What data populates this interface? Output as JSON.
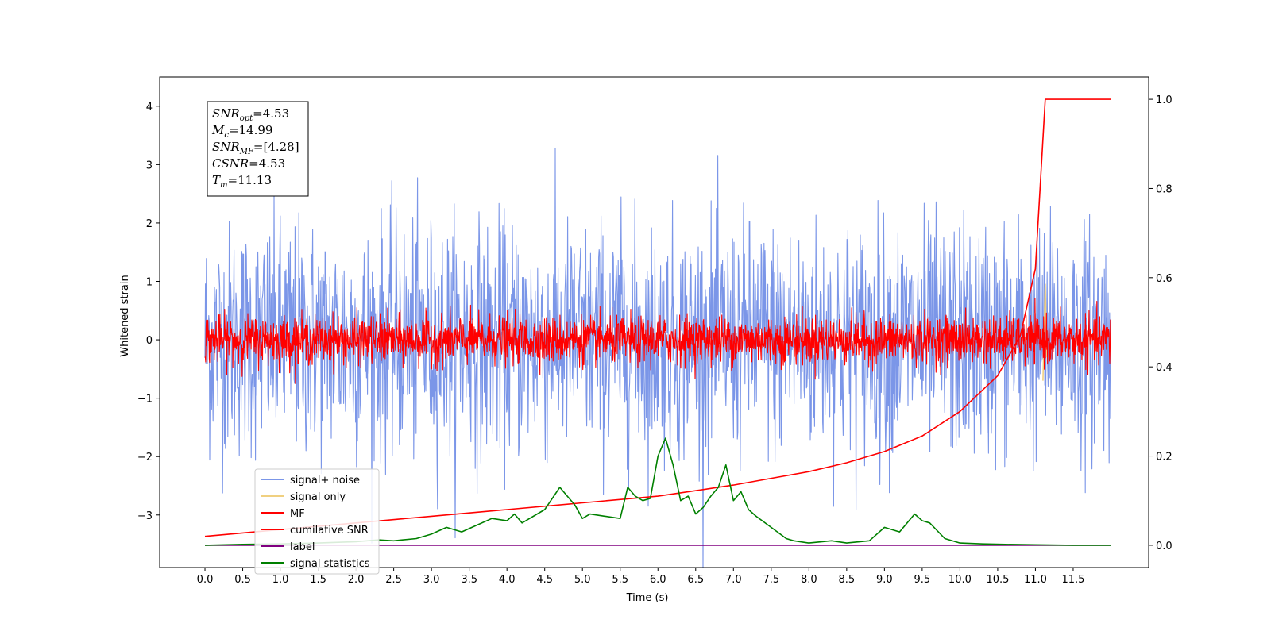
{
  "chart_data": {
    "type": "line",
    "xlabel": "Time (s)",
    "ylabel": "Whitened strain",
    "xlim": [
      -0.6,
      12.5
    ],
    "ylim": [
      -3.9,
      4.5
    ],
    "y2lim": [
      -0.05,
      1.05
    ],
    "x_ticks": [
      "0.0",
      "0.5",
      "1.0",
      "1.5",
      "2.0",
      "2.5",
      "3.0",
      "3.5",
      "4.0",
      "4.5",
      "5.0",
      "5.5",
      "6.0",
      "6.5",
      "7.0",
      "7.5",
      "8.0",
      "8.5",
      "9.0",
      "9.5",
      "10.0",
      "10.5",
      "11.0",
      "11.5"
    ],
    "y_ticks": [
      "−3",
      "−2",
      "−1",
      "0",
      "1",
      "2",
      "3",
      "4"
    ],
    "y2_ticks": [
      "0.0",
      "0.2",
      "0.4",
      "0.6",
      "0.8",
      "1.0"
    ],
    "grid": false,
    "legend_position": "lower-left",
    "annotation": {
      "lines": [
        {
          "var": "SNR",
          "sub": "opt",
          "value": "=4.53"
        },
        {
          "var": "M",
          "sub": "c",
          "value": "=14.99"
        },
        {
          "var": "SNR",
          "sub": "MF",
          "value": "=[4.28]"
        },
        {
          "var": "CSNR",
          "sub": "",
          "value": "=4.53"
        },
        {
          "var": "T",
          "sub": "m",
          "value": "=11.13"
        }
      ]
    },
    "series": [
      {
        "name": "signal+ noise",
        "color": "#7b96e8",
        "axis": "left",
        "kind": "noise",
        "x_range": [
          0.0,
          12.0
        ],
        "amplitude_std": 1.0
      },
      {
        "name": "signal only",
        "color": "#f0d080",
        "axis": "left",
        "kind": "spike",
        "x": [
          11.1,
          11.13,
          11.15
        ],
        "y": [
          -0.7,
          0.95,
          -0.3
        ]
      },
      {
        "name": "MF",
        "color": "#ff0000",
        "axis": "left",
        "kind": "noise",
        "x_range": [
          0.0,
          12.0
        ],
        "amplitude_std": 0.2
      },
      {
        "name": "cumilative SNR",
        "color": "#ff0000",
        "axis": "right",
        "x": [
          0.0,
          1.0,
          2.0,
          3.0,
          4.0,
          5.0,
          6.0,
          7.0,
          7.5,
          8.0,
          8.5,
          9.0,
          9.5,
          10.0,
          10.5,
          10.8,
          11.0,
          11.13,
          12.0
        ],
        "y": [
          0.02,
          0.035,
          0.05,
          0.065,
          0.08,
          0.095,
          0.11,
          0.135,
          0.15,
          0.165,
          0.185,
          0.21,
          0.245,
          0.3,
          0.38,
          0.47,
          0.62,
          1.0,
          1.0
        ]
      },
      {
        "name": "label",
        "color": "#800080",
        "axis": "right",
        "x": [
          0.0,
          12.0
        ],
        "y": [
          0.0,
          0.0
        ]
      },
      {
        "name": "signal statistics",
        "color": "#008000",
        "axis": "right",
        "x": [
          0.0,
          0.5,
          1.0,
          1.5,
          2.0,
          2.3,
          2.5,
          2.8,
          3.0,
          3.2,
          3.4,
          3.6,
          3.8,
          4.0,
          4.1,
          4.2,
          4.3,
          4.5,
          4.7,
          4.8,
          4.9,
          5.0,
          5.1,
          5.3,
          5.5,
          5.6,
          5.7,
          5.8,
          5.9,
          6.0,
          6.1,
          6.2,
          6.3,
          6.4,
          6.5,
          6.6,
          6.7,
          6.8,
          6.9,
          7.0,
          7.1,
          7.2,
          7.3,
          7.5,
          7.7,
          7.8,
          8.0,
          8.3,
          8.5,
          8.8,
          9.0,
          9.2,
          9.4,
          9.5,
          9.6,
          9.8,
          10.0,
          10.3,
          10.6,
          11.0,
          11.5,
          12.0
        ],
        "y": [
          0.0,
          0.002,
          0.003,
          0.005,
          0.008,
          0.012,
          0.01,
          0.015,
          0.025,
          0.04,
          0.03,
          0.045,
          0.06,
          0.055,
          0.07,
          0.05,
          0.06,
          0.08,
          0.13,
          0.11,
          0.09,
          0.06,
          0.07,
          0.065,
          0.06,
          0.13,
          0.11,
          0.1,
          0.105,
          0.2,
          0.24,
          0.18,
          0.1,
          0.11,
          0.07,
          0.085,
          0.11,
          0.13,
          0.18,
          0.1,
          0.12,
          0.08,
          0.065,
          0.04,
          0.015,
          0.01,
          0.005,
          0.01,
          0.005,
          0.01,
          0.04,
          0.03,
          0.07,
          0.055,
          0.05,
          0.015,
          0.005,
          0.003,
          0.002,
          0.001,
          0.0,
          0.0
        ]
      }
    ]
  }
}
